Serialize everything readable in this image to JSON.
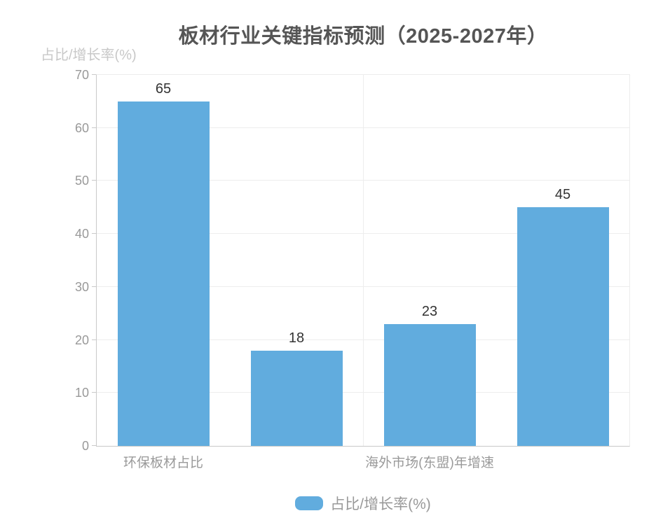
{
  "chart_data": {
    "type": "bar",
    "title": "板材行业关键指标预测（2025-2027年）",
    "ylabel": "占比/增长率(%)",
    "xlabel": "",
    "ylim": [
      0,
      70
    ],
    "y_ticks": [
      0,
      10,
      20,
      30,
      40,
      50,
      60,
      70
    ],
    "grid": true,
    "bar_count": 4,
    "series": [
      {
        "name": "占比/增长率(%)",
        "color": "#61ACDE",
        "values": [
          65,
          18,
          23,
          45
        ]
      }
    ],
    "data_labels": [
      65,
      18,
      23,
      45
    ],
    "x_tick_labels": [
      {
        "text": "环保板材占比",
        "bar_index": 0
      },
      {
        "text": "海外市场(东盟)年增速",
        "bar_index": 2
      }
    ],
    "legend": {
      "position": "bottom",
      "items": [
        {
          "label": "占比/增长率(%)",
          "color": "#61ACDE"
        }
      ]
    }
  },
  "colors": {
    "bar": "#61ACDE",
    "title_text": "#555555",
    "tick_label": "#999999",
    "axis_name": "#c8c8c8",
    "value_label": "#333333",
    "gridline": "#ededed",
    "axis_line": "#c9c9c9",
    "plot_border": "#ececec",
    "background": "#ffffff"
  }
}
